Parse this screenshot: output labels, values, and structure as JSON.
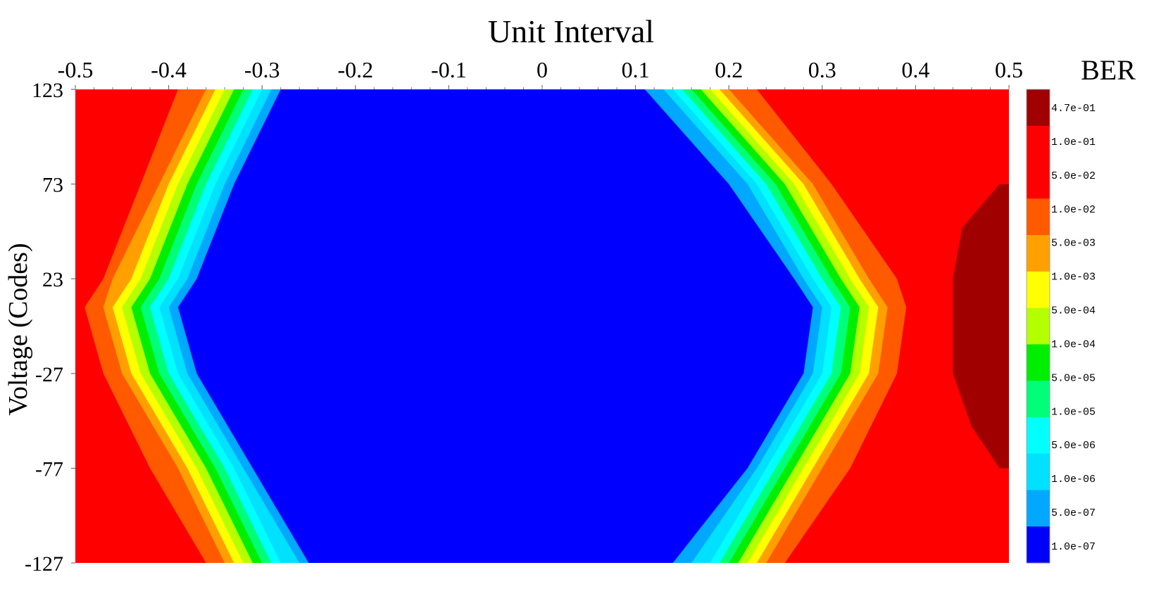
{
  "chart_data": {
    "type": "heatmap",
    "title": "Unit Interval",
    "xlabel": "Unit Interval",
    "ylabel": "Voltage (Codes)",
    "xlim": [
      -0.5,
      0.5
    ],
    "ylim": [
      -127,
      123
    ],
    "x_ticks": [
      -0.5,
      -0.4,
      -0.3,
      -0.2,
      -0.1,
      0,
      0.1,
      0.2,
      0.3,
      0.4,
      0.5
    ],
    "x_tick_labels": [
      "-0.5",
      "-0.4",
      "-0.3",
      "-0.2",
      "-0.1",
      "0",
      "0.1",
      "0.2",
      "0.3",
      "0.4",
      "0.5"
    ],
    "y_ticks": [
      123,
      73,
      23,
      -27,
      -77,
      -127
    ],
    "y_tick_labels": [
      "123",
      "73",
      "23",
      "-27",
      "-77",
      "-127"
    ],
    "colorbar": {
      "title": "BER",
      "levels": [
        {
          "label": "4.7e-01",
          "color": "#A00000"
        },
        {
          "label": "1.0e-01",
          "color": "#FF0000"
        },
        {
          "label": "5.0e-02",
          "color": "#FF0000"
        },
        {
          "label": "1.0e-02",
          "color": "#FF5A00"
        },
        {
          "label": "5.0e-03",
          "color": "#FFA000"
        },
        {
          "label": "1.0e-03",
          "color": "#FFFF00"
        },
        {
          "label": "5.0e-04",
          "color": "#B4FF00"
        },
        {
          "label": "1.0e-04",
          "color": "#00EE00"
        },
        {
          "label": "5.0e-05",
          "color": "#00FF78"
        },
        {
          "label": "1.0e-05",
          "color": "#00FFFF"
        },
        {
          "label": "5.0e-06",
          "color": "#00E0FF"
        },
        {
          "label": "1.0e-06",
          "color": "#00A8FF"
        },
        {
          "label": "5.0e-07",
          "color": "#0000FF"
        },
        {
          "label": "1.0e-07",
          "color": "#0000FF"
        }
      ]
    },
    "contours": {
      "voltage_samples": [
        123,
        73,
        23,
        8,
        -27,
        -77,
        -127
      ],
      "left_boundaries_ui": [
        {
          "ber": "5.0e-02",
          "color": "#FF5A00",
          "x": [
            -0.39,
            -0.43,
            -0.47,
            -0.49,
            -0.47,
            -0.42,
            -0.36
          ]
        },
        {
          "ber": "1.0e-02",
          "color": "#FFA000",
          "x": [
            -0.36,
            -0.41,
            -0.46,
            -0.47,
            -0.45,
            -0.39,
            -0.34
          ]
        },
        {
          "ber": "5.0e-03",
          "color": "#FFFF00",
          "x": [
            -0.35,
            -0.4,
            -0.44,
            -0.46,
            -0.44,
            -0.38,
            -0.33
          ]
        },
        {
          "ber": "1.0e-03",
          "color": "#B4FF00",
          "x": [
            -0.34,
            -0.39,
            -0.43,
            -0.45,
            -0.43,
            -0.37,
            -0.32
          ]
        },
        {
          "ber": "5.0e-04",
          "color": "#00EE00",
          "x": [
            -0.33,
            -0.38,
            -0.42,
            -0.44,
            -0.42,
            -0.36,
            -0.31
          ]
        },
        {
          "ber": "1.0e-04",
          "color": "#00FF78",
          "x": [
            -0.32,
            -0.37,
            -0.41,
            -0.43,
            -0.41,
            -0.35,
            -0.3
          ]
        },
        {
          "ber": "5.0e-05",
          "color": "#00FFFF",
          "x": [
            -0.31,
            -0.36,
            -0.4,
            -0.42,
            -0.4,
            -0.34,
            -0.29
          ]
        },
        {
          "ber": "1.0e-05",
          "color": "#00E0FF",
          "x": [
            -0.3,
            -0.35,
            -0.39,
            -0.41,
            -0.39,
            -0.33,
            -0.28
          ]
        },
        {
          "ber": "1.0e-06",
          "color": "#00A8FF",
          "x": [
            -0.29,
            -0.34,
            -0.38,
            -0.4,
            -0.38,
            -0.32,
            -0.26
          ]
        },
        {
          "ber": "5.0e-07",
          "color": "#0000FF",
          "x": [
            -0.28,
            -0.33,
            -0.37,
            -0.39,
            -0.37,
            -0.31,
            -0.25
          ]
        }
      ],
      "right_boundaries_ui": [
        {
          "ber": "5.0e-02",
          "color": "#FF5A00",
          "x": [
            0.23,
            0.31,
            0.38,
            0.39,
            0.38,
            0.33,
            0.26
          ]
        },
        {
          "ber": "1.0e-02",
          "color": "#FFA000",
          "x": [
            0.2,
            0.29,
            0.35,
            0.37,
            0.36,
            0.3,
            0.24
          ]
        },
        {
          "ber": "5.0e-03",
          "color": "#FFFF00",
          "x": [
            0.19,
            0.28,
            0.34,
            0.36,
            0.35,
            0.29,
            0.23
          ]
        },
        {
          "ber": "1.0e-03",
          "color": "#B4FF00",
          "x": [
            0.18,
            0.27,
            0.33,
            0.35,
            0.34,
            0.28,
            0.22
          ]
        },
        {
          "ber": "5.0e-04",
          "color": "#00EE00",
          "x": [
            0.17,
            0.26,
            0.32,
            0.34,
            0.33,
            0.27,
            0.21
          ]
        },
        {
          "ber": "1.0e-04",
          "color": "#00FF78",
          "x": [
            0.16,
            0.25,
            0.31,
            0.33,
            0.32,
            0.26,
            0.2
          ]
        },
        {
          "ber": "5.0e-05",
          "color": "#00FFFF",
          "x": [
            0.15,
            0.24,
            0.3,
            0.32,
            0.31,
            0.25,
            0.19
          ]
        },
        {
          "ber": "1.0e-05",
          "color": "#00E0FF",
          "x": [
            0.14,
            0.23,
            0.29,
            0.31,
            0.3,
            0.24,
            0.18
          ]
        },
        {
          "ber": "1.0e-06",
          "color": "#00A8FF",
          "x": [
            0.13,
            0.22,
            0.28,
            0.3,
            0.29,
            0.23,
            0.16
          ]
        },
        {
          "ber": "5.0e-07",
          "color": "#0000FF",
          "x": [
            0.11,
            0.2,
            0.27,
            0.29,
            0.28,
            0.22,
            0.14
          ]
        }
      ],
      "peak_region": {
        "ber": "4.7e-01",
        "color": "#A00000",
        "voltage": [
          73,
          50,
          23,
          8,
          -27,
          -55,
          -77
        ],
        "x_left": [
          0.49,
          0.45,
          0.44,
          0.44,
          0.44,
          0.46,
          0.49
        ],
        "x_right": 0.5
      },
      "background": {
        "ber": "1.0e-01",
        "color": "#FF0000"
      }
    }
  }
}
